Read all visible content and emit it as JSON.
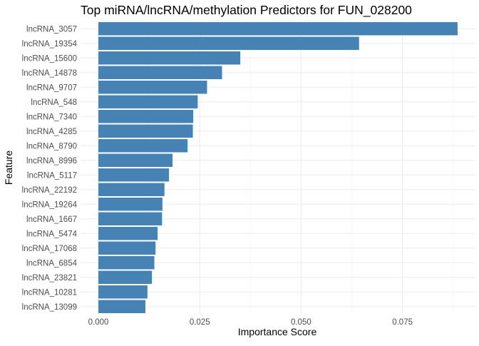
{
  "chart_data": {
    "type": "bar",
    "orientation": "horizontal",
    "title": "Top miRNA/lncRNA/methylation Predictors for FUN_028200",
    "xlabel": "Importance Score",
    "ylabel": "Feature",
    "categories": [
      "lncRNA_3057",
      "lncRNA_19354",
      "lncRNA_15600",
      "lncRNA_14878",
      "lncRNA_9707",
      "lncRNA_548",
      "lncRNA_7340",
      "lncRNA_4285",
      "lncRNA_8790",
      "lncRNA_8996",
      "lncRNA_5117",
      "lncRNA_22192",
      "lncRNA_19264",
      "lncRNA_1667",
      "lncRNA_5474",
      "lncRNA_17068",
      "lncRNA_6854",
      "lncRNA_23821",
      "lncRNA_10281",
      "lncRNA_13099"
    ],
    "values": [
      0.0886,
      0.0643,
      0.035,
      0.0305,
      0.0268,
      0.0245,
      0.0234,
      0.0233,
      0.022,
      0.0183,
      0.0174,
      0.0163,
      0.0158,
      0.0157,
      0.0146,
      0.0141,
      0.0138,
      0.0132,
      0.0121,
      0.0116
    ],
    "xlim": [
      -0.0044,
      0.093
    ],
    "xticks": [
      0.0,
      0.025,
      0.05,
      0.075
    ],
    "xtick_labels": [
      "0.000",
      "0.025",
      "0.050",
      "0.075"
    ],
    "bar_color": "#4682B4",
    "grid": true,
    "legend": "none"
  }
}
